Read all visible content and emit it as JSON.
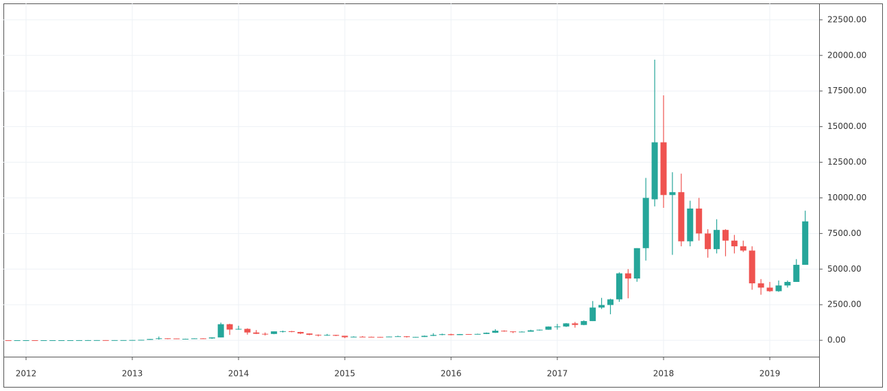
{
  "chart_data": {
    "type": "candlestick",
    "categories": [
      null,
      null,
      "2012",
      null,
      null,
      null,
      null,
      null,
      null,
      null,
      null,
      null,
      null,
      null,
      "2013",
      null,
      null,
      null,
      null,
      null,
      null,
      null,
      null,
      null,
      null,
      null,
      "2014",
      null,
      null,
      null,
      null,
      null,
      null,
      null,
      null,
      null,
      null,
      null,
      "2015",
      null,
      null,
      null,
      null,
      null,
      null,
      null,
      null,
      null,
      null,
      null,
      "2016",
      null,
      null,
      null,
      null,
      null,
      null,
      null,
      null,
      null,
      null,
      null,
      "2017",
      null,
      null,
      null,
      null,
      null,
      null,
      null,
      null,
      null,
      null,
      null,
      "2018",
      null,
      null,
      null,
      null,
      null,
      null,
      null,
      null,
      null,
      null,
      null,
      "2019",
      null,
      null,
      null,
      null
    ],
    "open": [
      3.3,
      3.0,
      4.7,
      5.5,
      4.9,
      4.9,
      5.0,
      5.2,
      6.7,
      9.3,
      10.2,
      12.4,
      11.2,
      12.6,
      13.5,
      20.4,
      33.4,
      93,
      139,
      129,
      97,
      106,
      135,
      133,
      204,
      1131,
      754,
      803,
      550,
      457,
      447,
      628,
      640,
      586,
      478,
      387,
      338,
      378,
      320,
      217,
      254,
      244,
      236,
      230,
      264,
      284,
      230,
      236,
      314,
      378,
      431,
      369,
      437,
      416,
      448,
      531,
      673,
      624,
      575,
      608,
      700,
      745,
      964,
      970,
      1190,
      1080,
      1350,
      2300,
      2480,
      2875,
      4700,
      4340,
      6470,
      9900,
      13900,
      10200,
      10400,
      6950,
      9250,
      7500,
      6400,
      7750,
      7000,
      6600,
      6300,
      4000,
      3700,
      3450,
      3850,
      4100,
      5300
    ],
    "high": [
      3.5,
      4.8,
      7.4,
      6.3,
      5.4,
      5.4,
      5.2,
      6.8,
      9.3,
      15.4,
      12.9,
      12.9,
      12.8,
      13.8,
      20.9,
      33.4,
      95,
      266,
      140,
      129,
      111,
      140,
      145,
      215,
      1242,
      1163,
      1022,
      845,
      720,
      550,
      630,
      680,
      660,
      600,
      490,
      415,
      450,
      390,
      320,
      280,
      300,
      260,
      247,
      270,
      320,
      285,
      243,
      336,
      500,
      470,
      462,
      443,
      440,
      467,
      550,
      780,
      700,
      626,
      630,
      740,
      756,
      980,
      1150,
      1210,
      1290,
      1400,
      2760,
      2980,
      2920,
      4770,
      5000,
      6470,
      11400,
      19700,
      17200,
      11800,
      11700,
      9800,
      10000,
      7800,
      8500,
      7800,
      7400,
      7000,
      6600,
      4300,
      4100,
      4200,
      4200,
      5700,
      9100
    ],
    "low": [
      2.0,
      2.8,
      4.6,
      4.2,
      4.4,
      4.7,
      4.9,
      5.2,
      6.5,
      7.1,
      10.0,
      10.4,
      10.5,
      12.2,
      13.2,
      19.5,
      33,
      50,
      79,
      88,
      65,
      101,
      109,
      105,
      198,
      380,
      742,
      400,
      440,
      340,
      430,
      550,
      566,
      440,
      360,
      275,
      320,
      300,
      152,
      210,
      240,
      215,
      225,
      220,
      254,
      198,
      225,
      236,
      300,
      355,
      350,
      367,
      405,
      414,
      440,
      518,
      604,
      510,
      570,
      603,
      680,
      740,
      750,
      935,
      890,
      1060,
      1350,
      2200,
      1830,
      2700,
      2950,
      4110,
      5600,
      9400,
      9300,
      6000,
      6600,
      6600,
      7000,
      5800,
      6100,
      5900,
      6100,
      6200,
      3550,
      3200,
      3400,
      3400,
      3700,
      4100,
      5300
    ],
    "close": [
      3.0,
      4.7,
      5.5,
      4.9,
      4.9,
      5.0,
      5.2,
      6.7,
      9.3,
      10.2,
      12.4,
      11.2,
      12.6,
      13.5,
      20.4,
      33.4,
      93,
      139,
      129,
      97,
      106,
      135,
      133,
      204,
      1131,
      754,
      803,
      550,
      457,
      447,
      628,
      640,
      586,
      478,
      387,
      338,
      378,
      320,
      217,
      254,
      244,
      236,
      230,
      264,
      284,
      230,
      236,
      314,
      378,
      431,
      369,
      437,
      416,
      448,
      531,
      673,
      624,
      575,
      608,
      700,
      745,
      964,
      970,
      1190,
      1080,
      1350,
      2300,
      2480,
      2875,
      4700,
      4340,
      6470,
      10000,
      13900,
      10200,
      10400,
      6950,
      9250,
      7500,
      6400,
      7750,
      7000,
      6600,
      6300,
      4000,
      3700,
      3450,
      3850,
      4100,
      5300,
      8350
    ],
    "up_color": "#26a69a",
    "down_color": "#ef5350",
    "ylim": [
      -1150,
      23650
    ],
    "yticks": [
      {
        "value": 0,
        "label": "0.00"
      },
      {
        "value": 2500,
        "label": "2500.00"
      },
      {
        "value": 5000,
        "label": "5000.00"
      },
      {
        "value": 7500,
        "label": "7500.00"
      },
      {
        "value": 10000,
        "label": "10000.00"
      },
      {
        "value": 12500,
        "label": "12500.00"
      },
      {
        "value": 15000,
        "label": "15000.00"
      },
      {
        "value": 17500,
        "label": "17500.00"
      },
      {
        "value": 20000,
        "label": "20000.00"
      },
      {
        "value": 22500,
        "label": "22500.00"
      }
    ],
    "grid": true
  }
}
